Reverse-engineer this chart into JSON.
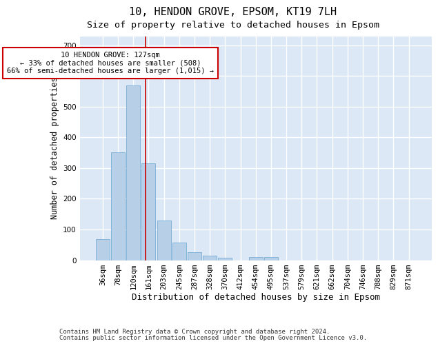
{
  "title1": "10, HENDON GROVE, EPSOM, KT19 7LH",
  "title2": "Size of property relative to detached houses in Epsom",
  "xlabel": "Distribution of detached houses by size in Epsom",
  "ylabel": "Number of detached properties",
  "bar_labels": [
    "36sqm",
    "78sqm",
    "120sqm",
    "161sqm",
    "203sqm",
    "245sqm",
    "287sqm",
    "328sqm",
    "370sqm",
    "412sqm",
    "454sqm",
    "495sqm",
    "537sqm",
    "579sqm",
    "621sqm",
    "662sqm",
    "704sqm",
    "746sqm",
    "788sqm",
    "829sqm",
    "871sqm"
  ],
  "bar_values": [
    68,
    352,
    570,
    315,
    130,
    57,
    25,
    14,
    8,
    0,
    10,
    10,
    0,
    0,
    0,
    0,
    0,
    0,
    0,
    0,
    0
  ],
  "bar_color": "#b8cfe8",
  "bar_edgecolor": "#7aadd4",
  "vline_x": 2.82,
  "vline_color": "#cc0000",
  "annotation_text": "10 HENDON GROVE: 127sqm\n← 33% of detached houses are smaller (508)\n66% of semi-detached houses are larger (1,015) →",
  "annotation_box_color": "#ffffff",
  "annotation_box_edgecolor": "#cc0000",
  "ylim": [
    0,
    730
  ],
  "yticks": [
    0,
    100,
    200,
    300,
    400,
    500,
    600,
    700
  ],
  "background_color": "#dce8f5",
  "grid_color": "#ffffff",
  "footer1": "Contains HM Land Registry data © Crown copyright and database right 2024.",
  "footer2": "Contains public sector information licensed under the Open Government Licence v3.0.",
  "title1_fontsize": 11,
  "title2_fontsize": 9.5,
  "xlabel_fontsize": 9,
  "ylabel_fontsize": 8.5,
  "tick_fontsize": 7.5,
  "ann_fontsize": 7.5,
  "footer_fontsize": 6.5
}
